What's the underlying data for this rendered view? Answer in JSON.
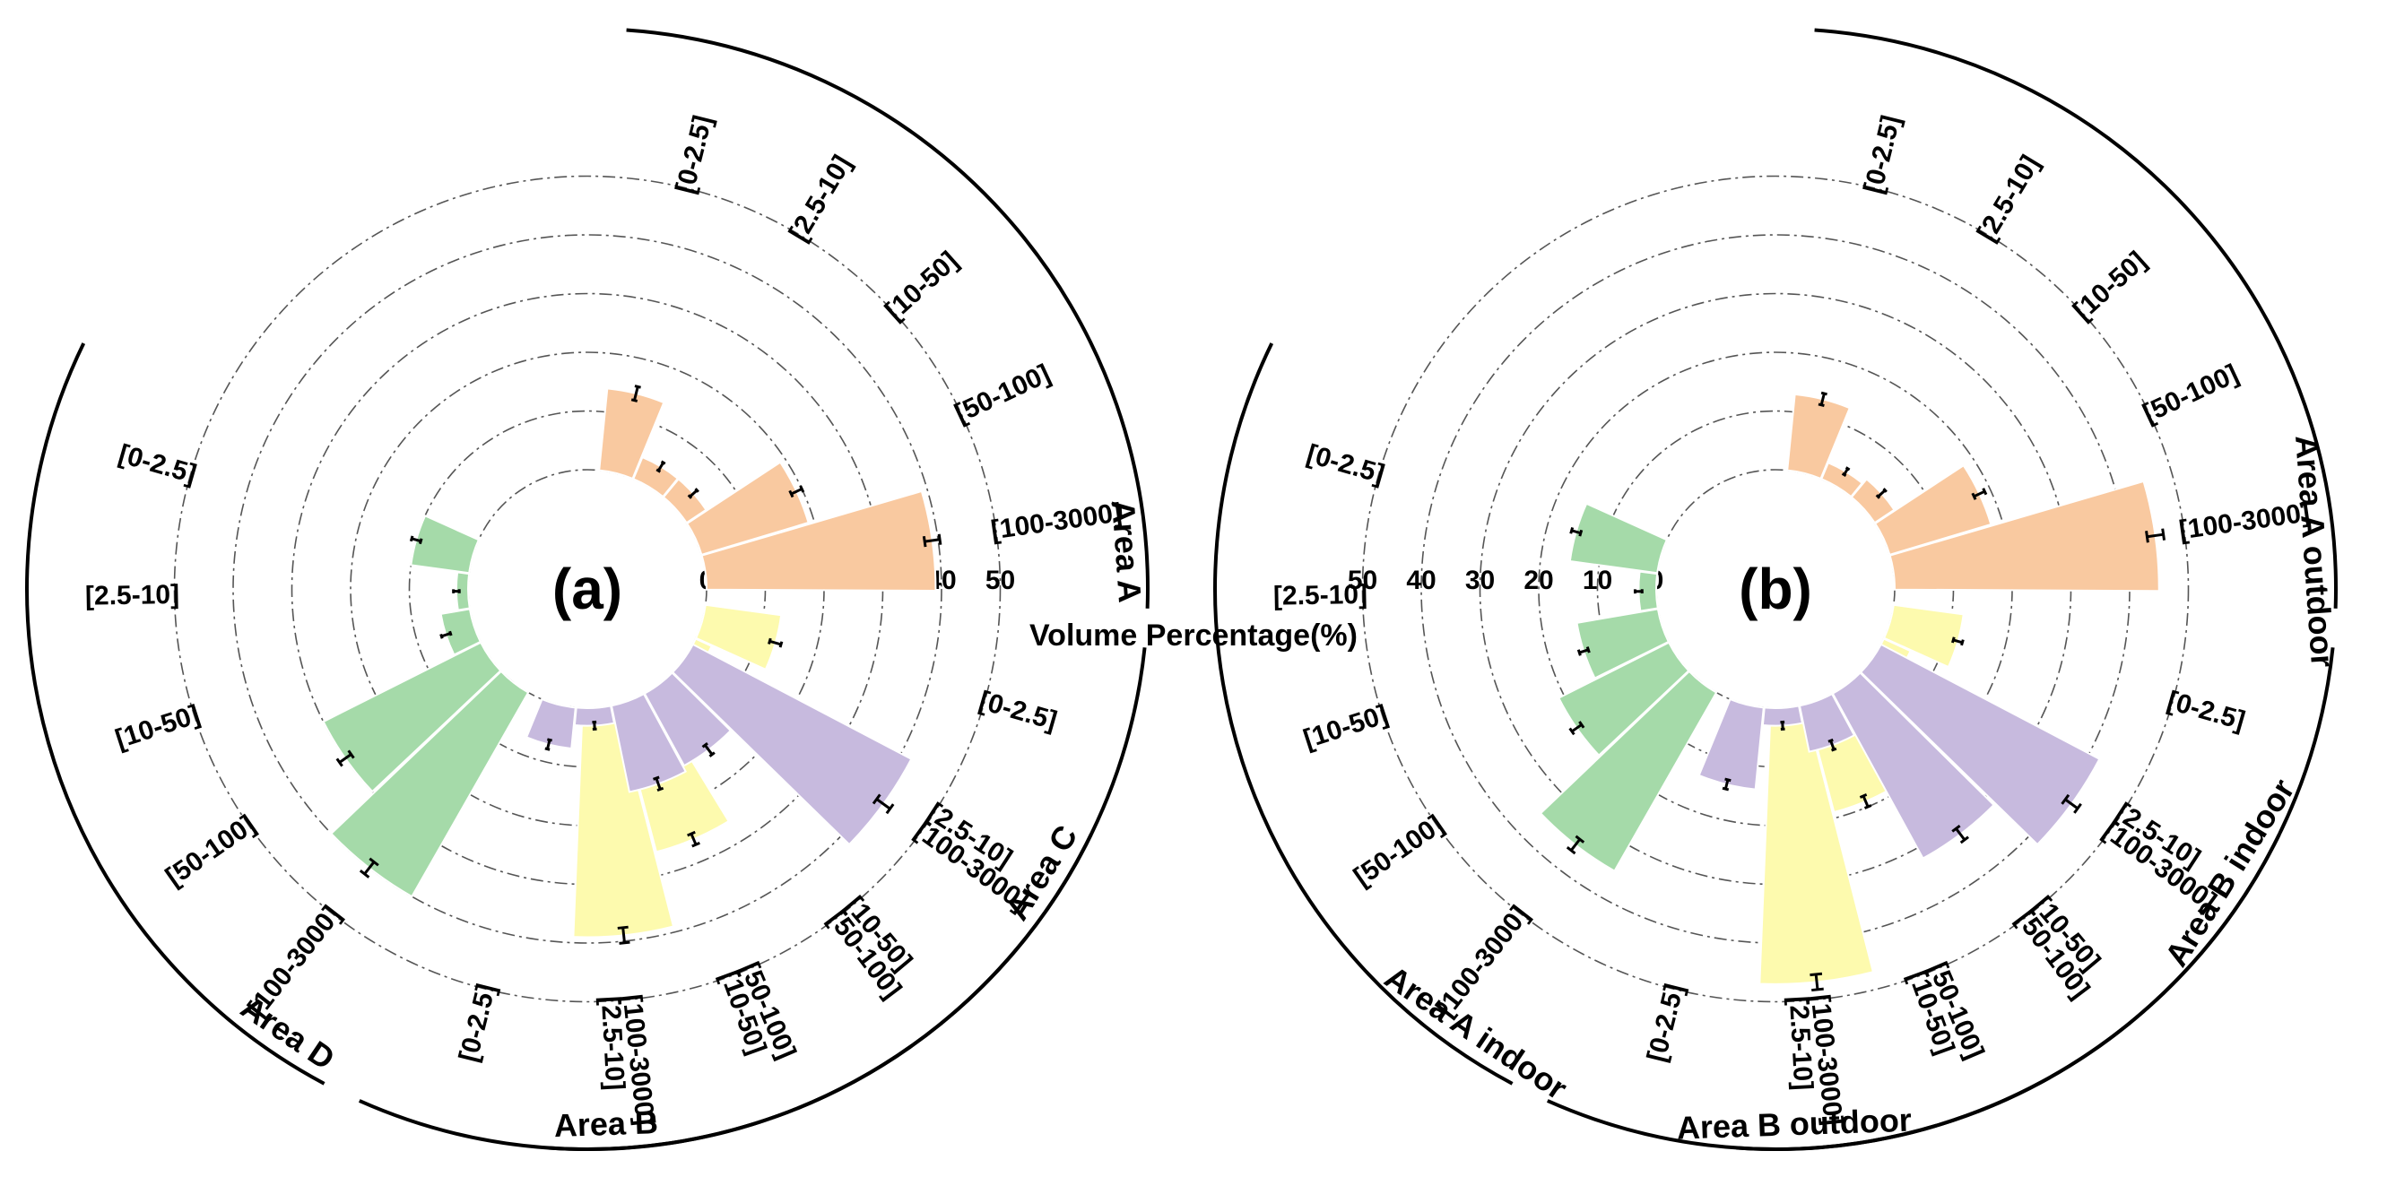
{
  "axis_title": "Volume Percentage(%)",
  "colors": {
    "A": "#f9c9a0",
    "B": "#fdfaae",
    "C": "#c7bade",
    "D": "#a5daa9"
  },
  "chart_data": [
    {
      "type": "polar-bar",
      "panel_label": "(a)",
      "r_ticks": [
        "0",
        "10",
        "20",
        "30",
        "40",
        "50"
      ],
      "r_range": [
        0,
        50
      ],
      "categories": [
        "[0-2.5]",
        "[2.5-10]",
        "[10-50]",
        "[50-100]",
        "[100-3000]"
      ],
      "groups": [
        {
          "name": "Area A",
          "color_key": "A",
          "values": [
            14,
            4,
            4,
            19,
            39
          ],
          "errors": [
            1.2,
            0.8,
            0.8,
            1.0,
            1.3
          ]
        },
        {
          "name": "Area B",
          "color_key": "B",
          "values": [
            13,
            3,
            5,
            26,
            39
          ],
          "errors": [
            1.0,
            0.6,
            0.8,
            1.0,
            1.3
          ]
        },
        {
          "name": "Area C",
          "color_key": "C",
          "values": [
            7,
            3,
            15,
            14,
            42
          ],
          "errors": [
            0.8,
            0.6,
            1.0,
            1.0,
            1.4
          ]
        },
        {
          "name": "Area D",
          "color_key": "D",
          "values": [
            10,
            2,
            5,
            30,
            40
          ],
          "errors": [
            0.8,
            0.5,
            0.8,
            1.2,
            1.3
          ]
        }
      ]
    },
    {
      "type": "polar-bar",
      "panel_label": "(b)",
      "r_ticks": [
        "0",
        "10",
        "20",
        "30",
        "40",
        "50"
      ],
      "r_range": [
        0,
        50
      ],
      "categories": [
        "[0-2.5]",
        "[2.5-10]",
        "[10-50]",
        "[50-100]",
        "[100-3000]"
      ],
      "groups": [
        {
          "name": "Area A outdoor",
          "color_key": "A",
          "values": [
            13,
            3,
            4,
            18,
            45
          ],
          "errors": [
            1.0,
            0.6,
            0.8,
            1.0,
            1.4
          ]
        },
        {
          "name": "Area B outdoor",
          "color_key": "B",
          "values": [
            12,
            5,
            4,
            19,
            47
          ],
          "errors": [
            0.8,
            0.8,
            0.6,
            1.0,
            1.3
          ]
        },
        {
          "name": "Area B indoor",
          "color_key": "C",
          "values": [
            14,
            3,
            8,
            32,
            42
          ],
          "errors": [
            0.8,
            0.6,
            0.8,
            1.2,
            1.3
          ]
        },
        {
          "name": "Area A indoor",
          "color_key": "D",
          "values": [
            15,
            3,
            14,
            21,
            35
          ],
          "errors": [
            0.8,
            0.6,
            0.8,
            1.0,
            1.2
          ]
        }
      ]
    }
  ]
}
